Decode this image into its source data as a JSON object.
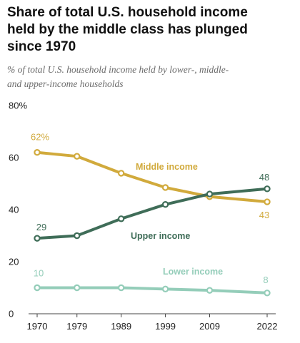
{
  "header": {
    "title_line1": "Share of total U.S. household income",
    "title_line2": "held by the middle class has plunged",
    "title_line3": "since 1970",
    "subtitle_line1": "% of total U.S. household income held by lower-, middle-",
    "subtitle_line2": "and upper-income households"
  },
  "chart_data": {
    "type": "line",
    "title": "Share of total U.S. household income held by the middle class has plunged since 1970",
    "subtitle": "% of total U.S. household income held by lower-, middle- and upper-income households",
    "categories": [
      "1970",
      "1979",
      "1989",
      "1999",
      "2009",
      "2022"
    ],
    "x": [
      1970,
      1979,
      1989,
      1999,
      2009,
      2022
    ],
    "ylim": [
      0,
      80
    ],
    "y_ticks": [
      {
        "value": 0,
        "label": "0"
      },
      {
        "value": 20,
        "label": "20"
      },
      {
        "value": 40,
        "label": "40"
      },
      {
        "value": 60,
        "label": "60"
      },
      {
        "value": 80,
        "label": "80%"
      }
    ],
    "grid": false,
    "legend": "direct labels",
    "series": [
      {
        "name": "Middle income",
        "color": "#d1aa3c",
        "values": [
          62,
          60.5,
          54,
          48.5,
          45,
          43
        ],
        "start_label": "62%",
        "end_label": "43"
      },
      {
        "name": "Upper income",
        "color": "#3f6d58",
        "values": [
          29,
          30,
          36.5,
          42,
          46,
          48
        ],
        "start_label": "29",
        "end_label": "48"
      },
      {
        "name": "Lower income",
        "color": "#94cdb9",
        "values": [
          10,
          10,
          10,
          9.5,
          9,
          8
        ],
        "start_label": "10",
        "end_label": "8"
      }
    ]
  }
}
